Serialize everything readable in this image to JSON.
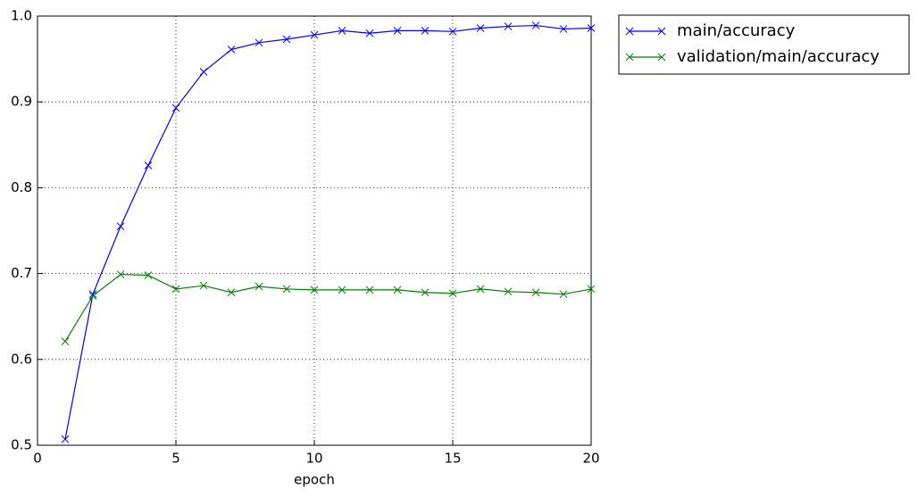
{
  "chart_data": {
    "type": "line",
    "x_label": "epoch",
    "x": [
      1,
      2,
      3,
      4,
      5,
      6,
      7,
      8,
      9,
      10,
      11,
      12,
      13,
      14,
      15,
      16,
      17,
      18,
      19,
      20
    ],
    "series": [
      {
        "name": "main/accuracy",
        "color": "#0000ff",
        "values": [
          0.507,
          0.676,
          0.755,
          0.826,
          0.893,
          0.935,
          0.961,
          0.969,
          0.973,
          0.978,
          0.983,
          0.98,
          0.983,
          0.983,
          0.982,
          0.986,
          0.988,
          0.989,
          0.985,
          0.986
        ]
      },
      {
        "name": "validation/main/accuracy",
        "color": "#008000",
        "values": [
          0.621,
          0.674,
          0.699,
          0.698,
          0.682,
          0.686,
          0.678,
          0.685,
          0.682,
          0.681,
          0.681,
          0.681,
          0.681,
          0.678,
          0.677,
          0.682,
          0.679,
          0.678,
          0.676,
          0.682
        ]
      }
    ],
    "xlim": [
      0,
      20
    ],
    "xticks": [
      0,
      5,
      10,
      15,
      20
    ],
    "ylim": [
      0.5,
      1
    ],
    "yticks": [
      0.5,
      0.6,
      0.7,
      0.8,
      0.9,
      {
        "value": 1,
        "label": "1.0"
      }
    ],
    "grid": true,
    "marker": "x",
    "legend": "outside-right"
  }
}
